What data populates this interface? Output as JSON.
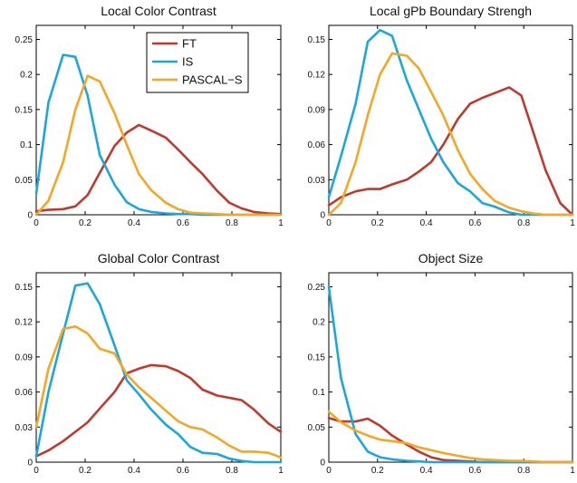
{
  "colors": {
    "FT": "#c0392b",
    "IS": "#1aa7e0",
    "PASCAL-S": "#f5a623"
  },
  "legend": {
    "entries": [
      "FT",
      "IS",
      "PASCAL−S"
    ]
  },
  "chart_data": [
    {
      "type": "line",
      "title": "Local Color Contrast",
      "xlim": [
        0,
        1
      ],
      "ylim": [
        0,
        0.27
      ],
      "xticks": [
        0,
        0.2,
        0.4,
        0.6,
        0.8,
        1
      ],
      "xtick_labels": [
        "0",
        "0.2",
        "0.4",
        "0.6",
        "0.8",
        "1"
      ],
      "yticks": [
        0,
        0.05,
        0.1,
        0.15,
        0.2,
        0.25
      ],
      "ytick_labels": [
        "0",
        "0.05",
        "0.1",
        "0.15",
        "0.2",
        "0.25"
      ],
      "legend_position": "top-right",
      "series": [
        {
          "name": "FT",
          "x": [
            0,
            0.05,
            0.11,
            0.16,
            0.21,
            0.26,
            0.32,
            0.37,
            0.42,
            0.47,
            0.53,
            0.58,
            0.63,
            0.68,
            0.74,
            0.79,
            0.84,
            0.89,
            0.95,
            1.0
          ],
          "y": [
            0.005,
            0.007,
            0.008,
            0.012,
            0.028,
            0.06,
            0.098,
            0.117,
            0.128,
            0.12,
            0.11,
            0.093,
            0.075,
            0.058,
            0.034,
            0.017,
            0.009,
            0.004,
            0.002,
            0.001
          ]
        },
        {
          "name": "IS",
          "x": [
            0,
            0.05,
            0.11,
            0.16,
            0.21,
            0.26,
            0.32,
            0.37,
            0.42,
            0.47,
            0.53,
            0.58,
            0.63,
            0.68,
            0.74,
            0.79,
            0.84,
            0.89,
            0.95,
            1.0
          ],
          "y": [
            0.03,
            0.16,
            0.228,
            0.225,
            0.17,
            0.085,
            0.043,
            0.018,
            0.008,
            0.004,
            0.002,
            0.001,
            0.001,
            0.0,
            0.0,
            0.0,
            0.0,
            0.0,
            0.0,
            0.0
          ]
        },
        {
          "name": "PASCAL-S",
          "x": [
            0,
            0.05,
            0.11,
            0.16,
            0.21,
            0.26,
            0.32,
            0.37,
            0.42,
            0.47,
            0.53,
            0.58,
            0.63,
            0.68,
            0.74,
            0.79,
            0.84,
            0.89,
            0.95,
            1.0
          ],
          "y": [
            0.0,
            0.02,
            0.075,
            0.15,
            0.198,
            0.19,
            0.145,
            0.1,
            0.058,
            0.035,
            0.017,
            0.008,
            0.003,
            0.002,
            0.001,
            0.0,
            0.0,
            0.0,
            0.0,
            0.0
          ]
        }
      ]
    },
    {
      "type": "line",
      "title": "Local gPb Boundary Strengh",
      "xlim": [
        0,
        1
      ],
      "ylim": [
        0,
        0.162
      ],
      "xticks": [
        0,
        0.2,
        0.4,
        0.6,
        0.8,
        1
      ],
      "xtick_labels": [
        "0",
        "0.2",
        "0.4",
        "0.6",
        "0.8",
        "1"
      ],
      "yticks": [
        0,
        0.03,
        0.06,
        0.09,
        0.12,
        0.15
      ],
      "ytick_labels": [
        "0",
        "0.03",
        "0.06",
        "0.09",
        "0.12",
        "0.15"
      ],
      "series": [
        {
          "name": "FT",
          "x": [
            0,
            0.05,
            0.11,
            0.16,
            0.21,
            0.26,
            0.32,
            0.37,
            0.42,
            0.47,
            0.53,
            0.58,
            0.63,
            0.68,
            0.74,
            0.79,
            0.84,
            0.89,
            0.95,
            1.0
          ],
          "y": [
            0.008,
            0.015,
            0.02,
            0.022,
            0.022,
            0.026,
            0.03,
            0.037,
            0.045,
            0.06,
            0.082,
            0.095,
            0.1,
            0.104,
            0.109,
            0.102,
            0.07,
            0.038,
            0.01,
            0.0
          ]
        },
        {
          "name": "IS",
          "x": [
            0,
            0.05,
            0.11,
            0.16,
            0.21,
            0.26,
            0.32,
            0.37,
            0.42,
            0.47,
            0.53,
            0.58,
            0.63,
            0.68,
            0.74,
            0.79,
            0.84,
            0.89,
            0.95,
            1.0
          ],
          "y": [
            0.015,
            0.05,
            0.095,
            0.148,
            0.158,
            0.153,
            0.115,
            0.09,
            0.065,
            0.045,
            0.027,
            0.02,
            0.01,
            0.007,
            0.002,
            0.0,
            0.0,
            0.0,
            0.0,
            0.0
          ]
        },
        {
          "name": "PASCAL-S",
          "x": [
            0,
            0.05,
            0.11,
            0.16,
            0.21,
            0.26,
            0.32,
            0.37,
            0.42,
            0.47,
            0.53,
            0.58,
            0.63,
            0.68,
            0.74,
            0.79,
            0.84,
            0.89,
            0.95,
            1.0
          ],
          "y": [
            0.0,
            0.01,
            0.045,
            0.085,
            0.12,
            0.138,
            0.136,
            0.125,
            0.105,
            0.085,
            0.055,
            0.035,
            0.022,
            0.012,
            0.006,
            0.003,
            0.001,
            0.0,
            0.0,
            0.0
          ]
        }
      ]
    },
    {
      "type": "line",
      "title": "Global Color Contrast",
      "xlim": [
        0,
        1
      ],
      "ylim": [
        0,
        0.162
      ],
      "xticks": [
        0,
        0.2,
        0.4,
        0.6,
        0.8,
        1
      ],
      "xtick_labels": [
        "0",
        "0.2",
        "0.4",
        "0.6",
        "0.8",
        "1"
      ],
      "yticks": [
        0,
        0.03,
        0.06,
        0.09,
        0.12,
        0.15
      ],
      "ytick_labels": [
        "0",
        "0.03",
        "0.06",
        "0.09",
        "0.12",
        "0.15"
      ],
      "series": [
        {
          "name": "FT",
          "x": [
            0,
            0.05,
            0.11,
            0.16,
            0.21,
            0.26,
            0.32,
            0.37,
            0.42,
            0.47,
            0.53,
            0.58,
            0.63,
            0.68,
            0.74,
            0.79,
            0.84,
            0.89,
            0.95,
            1.0
          ],
          "y": [
            0.005,
            0.01,
            0.018,
            0.026,
            0.034,
            0.046,
            0.06,
            0.076,
            0.08,
            0.083,
            0.082,
            0.078,
            0.072,
            0.062,
            0.057,
            0.055,
            0.053,
            0.045,
            0.033,
            0.026
          ]
        },
        {
          "name": "IS",
          "x": [
            0,
            0.05,
            0.11,
            0.16,
            0.21,
            0.26,
            0.32,
            0.37,
            0.42,
            0.47,
            0.53,
            0.58,
            0.63,
            0.68,
            0.74,
            0.79,
            0.84,
            0.89,
            0.95,
            1.0
          ],
          "y": [
            0.005,
            0.06,
            0.11,
            0.151,
            0.153,
            0.135,
            0.1,
            0.07,
            0.058,
            0.045,
            0.032,
            0.024,
            0.013,
            0.008,
            0.007,
            0.003,
            0.001,
            0.0,
            0.0,
            0.0
          ]
        },
        {
          "name": "PASCAL-S",
          "x": [
            0,
            0.05,
            0.11,
            0.16,
            0.21,
            0.26,
            0.32,
            0.37,
            0.42,
            0.47,
            0.53,
            0.58,
            0.63,
            0.68,
            0.74,
            0.79,
            0.84,
            0.89,
            0.95,
            1.0
          ],
          "y": [
            0.03,
            0.08,
            0.114,
            0.116,
            0.11,
            0.097,
            0.093,
            0.075,
            0.064,
            0.055,
            0.044,
            0.035,
            0.03,
            0.028,
            0.021,
            0.014,
            0.009,
            0.009,
            0.008,
            0.004
          ]
        }
      ]
    },
    {
      "type": "line",
      "title": "Object Size",
      "xlim": [
        0,
        1
      ],
      "ylim": [
        0,
        0.27
      ],
      "xticks": [
        0,
        0.2,
        0.4,
        0.6,
        0.8,
        1
      ],
      "xtick_labels": [
        "0",
        "0.2",
        "0.4",
        "0.6",
        "0.8",
        "1"
      ],
      "yticks": [
        0,
        0.05,
        0.1,
        0.15,
        0.2,
        0.25
      ],
      "ytick_labels": [
        "0",
        "0.05",
        "0.1",
        "0.15",
        "0.2",
        "0.25"
      ],
      "series": [
        {
          "name": "FT",
          "x": [
            0,
            0.05,
            0.11,
            0.16,
            0.21,
            0.26,
            0.32,
            0.37,
            0.42,
            0.47,
            0.53,
            0.58,
            0.63,
            0.68,
            0.74,
            0.79,
            0.84,
            0.89,
            0.95,
            1.0
          ],
          "y": [
            0.063,
            0.058,
            0.058,
            0.062,
            0.052,
            0.038,
            0.025,
            0.015,
            0.007,
            0.003,
            0.002,
            0.001,
            0.0,
            0.0,
            0.0,
            0.0,
            0.0,
            0.0,
            0.0,
            0.0
          ]
        },
        {
          "name": "IS",
          "x": [
            0,
            0.05,
            0.11,
            0.16,
            0.21,
            0.26,
            0.32,
            0.37,
            0.42,
            0.47,
            0.53,
            0.58,
            0.63,
            0.68,
            0.74,
            0.79,
            0.84,
            0.89,
            0.95,
            1.0
          ],
          "y": [
            0.25,
            0.12,
            0.04,
            0.015,
            0.007,
            0.004,
            0.002,
            0.001,
            0.0,
            0.0,
            0.0,
            0.0,
            0.0,
            0.0,
            0.0,
            0.0,
            0.0,
            0.0,
            0.0,
            0.0
          ]
        },
        {
          "name": "PASCAL-S",
          "x": [
            0,
            0.05,
            0.11,
            0.16,
            0.21,
            0.26,
            0.32,
            0.37,
            0.42,
            0.47,
            0.53,
            0.58,
            0.63,
            0.68,
            0.74,
            0.79,
            0.84,
            0.89,
            0.95,
            1.0
          ],
          "y": [
            0.072,
            0.057,
            0.045,
            0.038,
            0.032,
            0.03,
            0.027,
            0.021,
            0.017,
            0.013,
            0.009,
            0.006,
            0.004,
            0.003,
            0.002,
            0.002,
            0.001,
            0.0,
            0.0,
            0.0
          ]
        }
      ]
    }
  ]
}
